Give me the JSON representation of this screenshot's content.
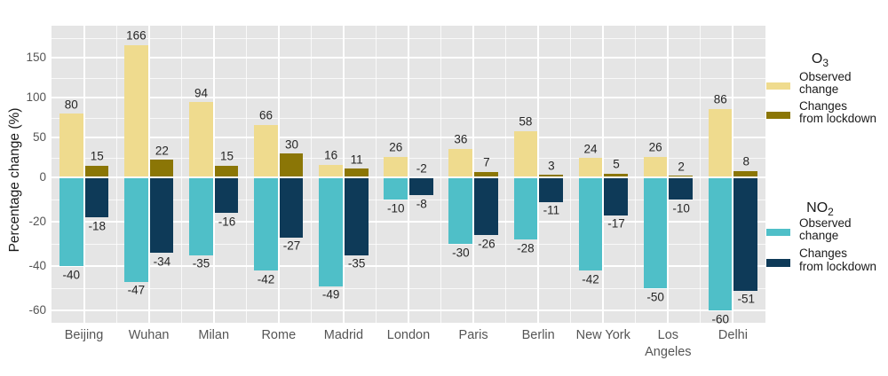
{
  "chart_data": {
    "type": "bar",
    "title": "",
    "ylabel": "Percentage change (%)",
    "categories": [
      "Beijing",
      "Wuhan",
      "Milan",
      "Rome",
      "Madrid",
      "London",
      "Paris",
      "Berlin",
      "New York",
      "Los Angeles",
      "Delhi"
    ],
    "series": [
      {
        "key": "o3-observed",
        "name": "O3 Observed change",
        "color": "#EFDB8E",
        "values": [
          80,
          166,
          94,
          66,
          16,
          26,
          36,
          58,
          24,
          26,
          86
        ]
      },
      {
        "key": "o3-lockdown",
        "name": "O3 Changes from lockdown",
        "color": "#8B7606",
        "values": [
          15,
          22,
          15,
          30,
          11,
          -2,
          7,
          3,
          5,
          2,
          8
        ]
      },
      {
        "key": "no2-observed",
        "name": "NO2 Observed change",
        "color": "#4FBFC8",
        "values": [
          -40,
          -47,
          -35,
          -42,
          -49,
          -10,
          -30,
          -28,
          -42,
          -50,
          -60
        ]
      },
      {
        "key": "no2-lockdown",
        "name": "NO2 Changes from lockdown",
        "color": "#0E3A58",
        "values": [
          -18,
          -34,
          -16,
          -27,
          -35,
          -8,
          -26,
          -11,
          -17,
          -10,
          -51
        ]
      }
    ],
    "y_ticks": [
      150,
      100,
      50,
      0,
      -20,
      -40,
      -60
    ],
    "y_minor_ticks": [
      175,
      125,
      75,
      25,
      -10,
      -30,
      -50
    ],
    "axis_scale_note": "dual linear scale: 50% per gridline above zero, 20% per gridline below zero",
    "grid": true,
    "legend_position": "right",
    "legend": {
      "groups": [
        {
          "title": "O",
          "subscript": "3",
          "items": [
            {
              "label_lines": [
                "Observed",
                "change"
              ],
              "color": "#EFDB8E"
            },
            {
              "label_lines": [
                "Changes",
                "from lockdown"
              ],
              "color": "#8B7606"
            }
          ]
        },
        {
          "title": "NO",
          "subscript": "2",
          "items": [
            {
              "label_lines": [
                "Observed",
                "change"
              ],
              "color": "#4FBFC8"
            },
            {
              "label_lines": [
                "Changes",
                "from lockdown"
              ],
              "color": "#0E3A58"
            }
          ]
        }
      ]
    },
    "colors": {
      "panel_bg": "#E5E5E5",
      "gridline": "#FFFFFF",
      "o3_observed": "#EFDB8E",
      "o3_lockdown": "#8B7606",
      "no2_observed": "#4FBFC8",
      "no2_lockdown": "#0E3A58",
      "value_label": "#262626",
      "tick_label": "#555555"
    }
  }
}
